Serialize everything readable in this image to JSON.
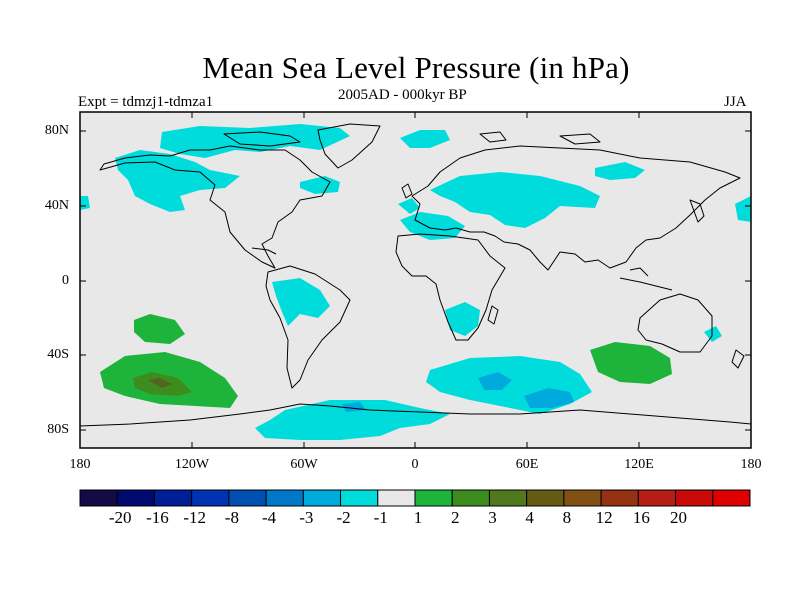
{
  "title": "Mean Sea Level Pressure (in hPa)",
  "subtitle": "2005AD - 000kyr BP",
  "experiment": "Expt = tdmzj1-tdmza1",
  "season": "JJA",
  "lat_labels": [
    "80N",
    "40N",
    "0",
    "40S",
    "80S"
  ],
  "lon_labels": [
    "180",
    "120W",
    "60W",
    "0",
    "60E",
    "120E",
    "180"
  ],
  "colors": {
    "map_background": "#e8e8e8",
    "neg_minus1": "#00dcdc",
    "neg_minus2": "#00aadc",
    "pos_1": "#1eb43c",
    "pos_2": "#3c8c1e",
    "pos_3": "#55641e",
    "coast": "#000000"
  },
  "colorbar": {
    "colors": [
      "#140a46",
      "#000a6e",
      "#001e96",
      "#0032b4",
      "#0050b4",
      "#0078c8",
      "#00aadc",
      "#00dcdc",
      "#e8e8e8",
      "#1eb43c",
      "#3c8c1e",
      "#50781e",
      "#645a14",
      "#825014",
      "#963214",
      "#b41e14",
      "#c80a0a",
      "#dc0000"
    ],
    "labels": [
      "-20",
      "-16",
      "-12",
      "-8",
      "-4",
      "-3",
      "-2",
      "-1",
      "1",
      "2",
      "3",
      "4",
      "8",
      "12",
      "16",
      "20"
    ]
  }
}
